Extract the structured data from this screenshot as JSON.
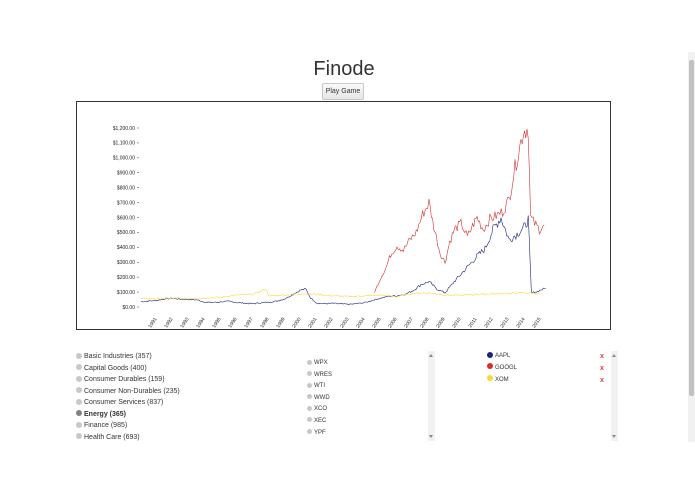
{
  "app": {
    "title": "Finode",
    "play_button_label": "Play Game"
  },
  "chart_data": {
    "type": "line",
    "title": "",
    "xlabel": "",
    "ylabel": "",
    "x_ticks": [
      "1991",
      "1992",
      "1993",
      "1994",
      "1995",
      "1996",
      "1997",
      "1998",
      "1999",
      "2000",
      "2001",
      "2002",
      "2003",
      "2004",
      "2005",
      "2006",
      "2007",
      "2008",
      "2009",
      "2010",
      "2011",
      "2012",
      "2013",
      "2014",
      "2015"
    ],
    "y_ticks": [
      "$0.00",
      "$100.00",
      "$200.00",
      "$300.00",
      "$400.00",
      "$500.00",
      "$600.00",
      "$700.00",
      "$800.00",
      "$900.00",
      "$1,000.00",
      "$1,100.00",
      "$1,200.00"
    ],
    "xlim": [
      1990,
      2015.5
    ],
    "ylim": [
      0,
      1200
    ],
    "grid": false,
    "series": [
      {
        "color": "#1a237e",
        "points": [
          [
            1990,
            35
          ],
          [
            1990.5,
            40
          ],
          [
            1991,
            45
          ],
          [
            1991.5,
            55
          ],
          [
            1992,
            58
          ],
          [
            1992.5,
            52
          ],
          [
            1993,
            50
          ],
          [
            1993.5,
            48
          ],
          [
            1994,
            32
          ],
          [
            1994.5,
            30
          ],
          [
            1995,
            35
          ],
          [
            1995.5,
            38
          ],
          [
            1996,
            30
          ],
          [
            1996.5,
            25
          ],
          [
            1997,
            22
          ],
          [
            1997.5,
            28
          ],
          [
            1998,
            32
          ],
          [
            1998.5,
            40
          ],
          [
            1999,
            55
          ],
          [
            1999.5,
            85
          ],
          [
            2000,
            115
          ],
          [
            2000.3,
            120
          ],
          [
            2000.6,
            60
          ],
          [
            2001,
            25
          ],
          [
            2001.5,
            22
          ],
          [
            2002,
            25
          ],
          [
            2002.5,
            20
          ],
          [
            2003,
            18
          ],
          [
            2003.5,
            22
          ],
          [
            2004,
            30
          ],
          [
            2004.5,
            45
          ],
          [
            2005,
            60
          ],
          [
            2005.5,
            72
          ],
          [
            2006,
            75
          ],
          [
            2006.5,
            85
          ],
          [
            2007,
            110
          ],
          [
            2007.5,
            150
          ],
          [
            2008,
            170
          ],
          [
            2008.5,
            120
          ],
          [
            2009,
            95
          ],
          [
            2009.5,
            160
          ],
          [
            2010,
            220
          ],
          [
            2010.5,
            280
          ],
          [
            2011,
            340
          ],
          [
            2011.5,
            390
          ],
          [
            2012,
            520
          ],
          [
            2012.5,
            600
          ],
          [
            2013,
            450
          ],
          [
            2013.5,
            490
          ],
          [
            2014,
            540
          ],
          [
            2014.2,
            590
          ],
          [
            2014.4,
            95
          ],
          [
            2014.7,
            100
          ],
          [
            2015,
            115
          ],
          [
            2015.3,
            125
          ]
        ]
      },
      {
        "color": "#d32f2f",
        "points": [
          [
            2004.6,
            100
          ],
          [
            2005,
            200
          ],
          [
            2005.3,
            260
          ],
          [
            2005.6,
            350
          ],
          [
            2006,
            410
          ],
          [
            2006.4,
            380
          ],
          [
            2006.8,
            450
          ],
          [
            2007.2,
            500
          ],
          [
            2007.6,
            620
          ],
          [
            2008,
            700
          ],
          [
            2008.3,
            540
          ],
          [
            2008.7,
            360
          ],
          [
            2009,
            300
          ],
          [
            2009.3,
            440
          ],
          [
            2009.6,
            520
          ],
          [
            2010,
            560
          ],
          [
            2010.4,
            470
          ],
          [
            2010.8,
            560
          ],
          [
            2011,
            600
          ],
          [
            2011.4,
            520
          ],
          [
            2011.8,
            590
          ],
          [
            2012.2,
            610
          ],
          [
            2012.6,
            640
          ],
          [
            2013,
            720
          ],
          [
            2013.3,
            900
          ],
          [
            2013.6,
            1040
          ],
          [
            2013.9,
            1180
          ],
          [
            2014.2,
            1200
          ],
          [
            2014.35,
            600
          ],
          [
            2014.6,
            560
          ],
          [
            2014.9,
            520
          ],
          [
            2015.2,
            550
          ]
        ]
      },
      {
        "color": "#fdd835",
        "points": [
          [
            1990,
            55
          ],
          [
            1992,
            58
          ],
          [
            1994,
            60
          ],
          [
            1995,
            65
          ],
          [
            1996,
            80
          ],
          [
            1997,
            85
          ],
          [
            1997.8,
            120
          ],
          [
            1998,
            75
          ],
          [
            1999,
            80
          ],
          [
            2000,
            90
          ],
          [
            2001,
            85
          ],
          [
            2002,
            75
          ],
          [
            2003,
            70
          ],
          [
            2004,
            75
          ],
          [
            2005,
            80
          ],
          [
            2006,
            70
          ],
          [
            2007,
            90
          ],
          [
            2008,
            95
          ],
          [
            2009,
            80
          ],
          [
            2010,
            78
          ],
          [
            2011,
            85
          ],
          [
            2012,
            88
          ],
          [
            2013,
            90
          ],
          [
            2014,
            95
          ],
          [
            2015,
            90
          ]
        ]
      }
    ]
  },
  "sectors": [
    {
      "label": "Basic Industries (357)",
      "selected": false
    },
    {
      "label": "Capital Goods (400)",
      "selected": false
    },
    {
      "label": "Consumer Durables (159)",
      "selected": false
    },
    {
      "label": "Consumer Non-Durables (235)",
      "selected": false
    },
    {
      "label": "Consumer Services (837)",
      "selected": false
    },
    {
      "label": "Energy (365)",
      "selected": true
    },
    {
      "label": "Finance (985)",
      "selected": false
    },
    {
      "label": "Health Care (693)",
      "selected": false
    }
  ],
  "tickers": [
    "WPX",
    "WRES",
    "WTI",
    "WWD",
    "XCO",
    "XEC",
    "YPF"
  ],
  "portfolio": [
    {
      "symbol": "AAPL",
      "color": "#1a237e",
      "remove_label": "x"
    },
    {
      "symbol": "GOOGL",
      "color": "#d32f2f",
      "remove_label": "x"
    },
    {
      "symbol": "XOM",
      "color": "#fdd835",
      "remove_label": "x"
    }
  ]
}
